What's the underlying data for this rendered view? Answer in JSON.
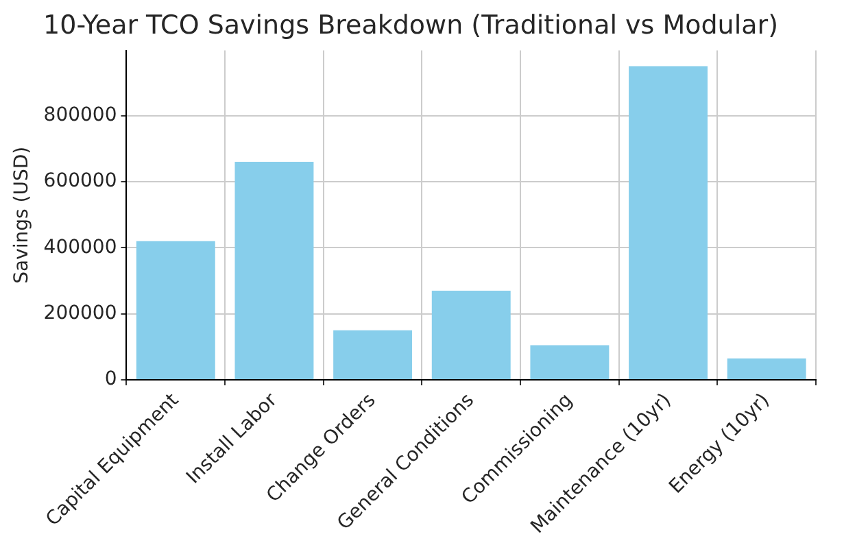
{
  "chart_data": {
    "type": "bar",
    "title": "10-Year TCO Savings Breakdown (Traditional vs Modular)",
    "ylabel": "Savings (USD)",
    "categories": [
      "Capital Equipment",
      "Install Labor",
      "Change Orders",
      "General Conditions",
      "Commissioning",
      "Maintenance (10yr)",
      "Energy (10yr)"
    ],
    "values": [
      420000,
      660000,
      150000,
      270000,
      105000,
      950000,
      65000
    ],
    "color": "#87ceeb",
    "ylim": [
      0,
      997500
    ],
    "yticks": [
      0,
      200000,
      400000,
      600000,
      800000
    ],
    "grid": true
  }
}
